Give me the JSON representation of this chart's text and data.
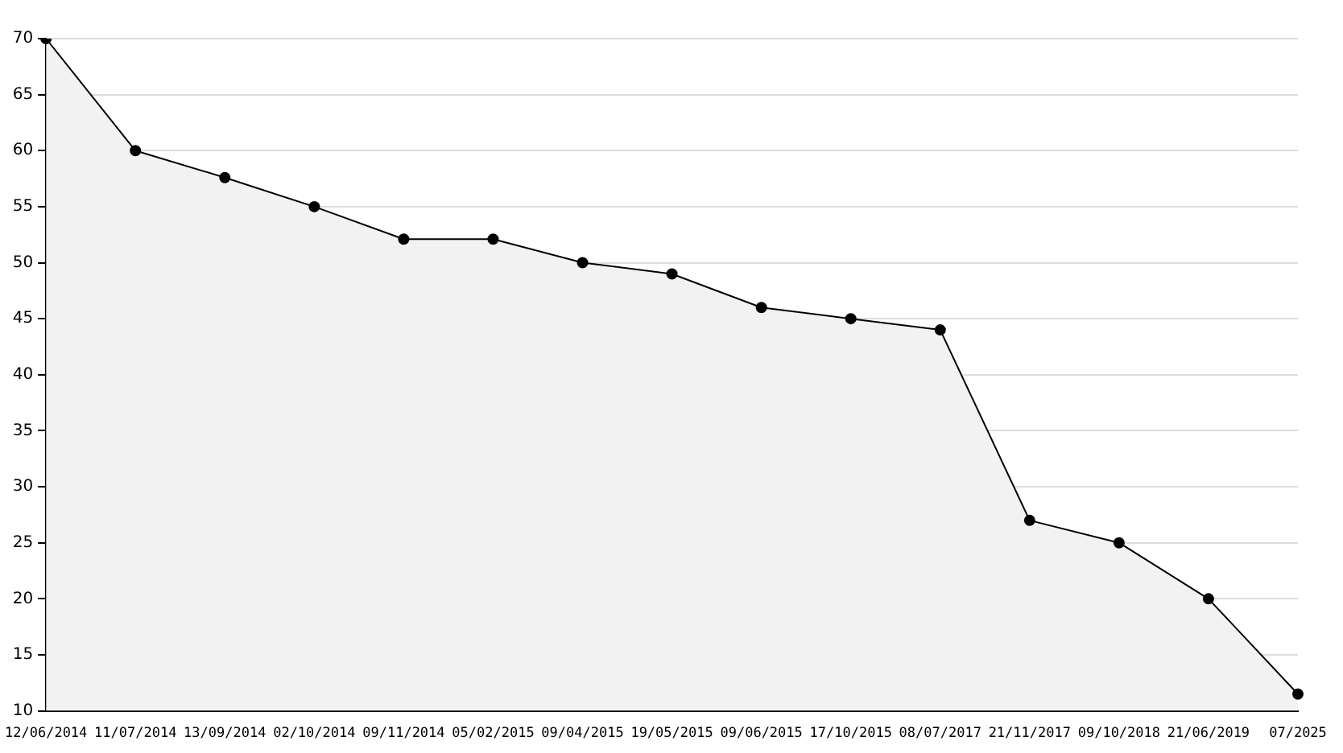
{
  "chart_data": {
    "type": "area",
    "categories": [
      "12/06/2014",
      "11/07/2014",
      "13/09/2014",
      "02/10/2014",
      "09/11/2014",
      "05/02/2015",
      "09/04/2015",
      "19/05/2015",
      "09/06/2015",
      "17/10/2015",
      "08/07/2017",
      "21/11/2017",
      "09/10/2018",
      "21/06/2019",
      "07/2025"
    ],
    "series": [
      {
        "color": "#000000",
        "values": [
          70,
          60,
          57.6,
          55,
          52.1,
          52.1,
          50,
          49,
          46,
          45,
          44,
          27,
          25,
          20,
          11.5
        ]
      }
    ],
    "ylim": [
      10,
      70
    ],
    "yticks": [
      10,
      15,
      20,
      25,
      30,
      35,
      40,
      45,
      50,
      55,
      60,
      65,
      70
    ],
    "grid": "y",
    "legend": false,
    "marker": "circle"
  }
}
